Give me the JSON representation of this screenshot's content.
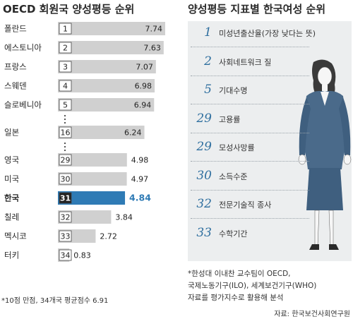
{
  "left_title": "OECD 회원국 양성평등 순위",
  "right_title": "양성평등 지표별 한국여성 순위",
  "chart_data": {
    "type": "bar",
    "title": "OECD 회원국 양성평등 순위",
    "categories": [
      "폴란드",
      "에스토니아",
      "프랑스",
      "스웨덴",
      "슬로베니아",
      "일본",
      "영국",
      "미국",
      "한국",
      "칠레",
      "멕시코",
      "터키"
    ],
    "ranks": [
      "1",
      "2",
      "3",
      "4",
      "5",
      "16",
      "29",
      "30",
      "31",
      "32",
      "33",
      "34"
    ],
    "values": [
      7.74,
      7.63,
      7.07,
      6.98,
      6.94,
      6.24,
      4.98,
      4.97,
      4.84,
      3.84,
      2.72,
      0.83
    ],
    "value_labels": [
      "7.74",
      "7.63",
      "7.07",
      "6.98",
      "6.94",
      "6.24",
      "4.98",
      "4.97",
      "4.84",
      "3.84",
      "2.72",
      "0.83"
    ],
    "highlight": "한국",
    "xlim": [
      0,
      7.74
    ],
    "gaps_after": [
      "슬로베니아",
      "일본"
    ],
    "colors": {
      "bar": "#d0d0d0",
      "highlight": "#2f7bb5",
      "highlight_text": "#2f7bb5"
    }
  },
  "left_footnote": "*10점 만점, 34개국 평균점수 6.91",
  "indicators": [
    {
      "rank": "1",
      "label": "미성년출산율(가장 낮다는 뜻)"
    },
    {
      "rank": "2",
      "label": "사회네트워크 질"
    },
    {
      "rank": "5",
      "label": "기대수명"
    },
    {
      "rank": "29",
      "label": "고용률"
    },
    {
      "rank": "29",
      "label": "모성사망률"
    },
    {
      "rank": "30",
      "label": "소득수준"
    },
    {
      "rank": "32",
      "label": "전문기술직 종사"
    },
    {
      "rank": "33",
      "label": "수학기간"
    }
  ],
  "right_note": [
    "*한성대 이내찬 교수팀이 OECD,",
    "국제노동기구(ILO), 세계보건기구(WHO)",
    "자료를 평가지수로 활용해 분석"
  ],
  "source": "자료: 한국보건사회연구원"
}
